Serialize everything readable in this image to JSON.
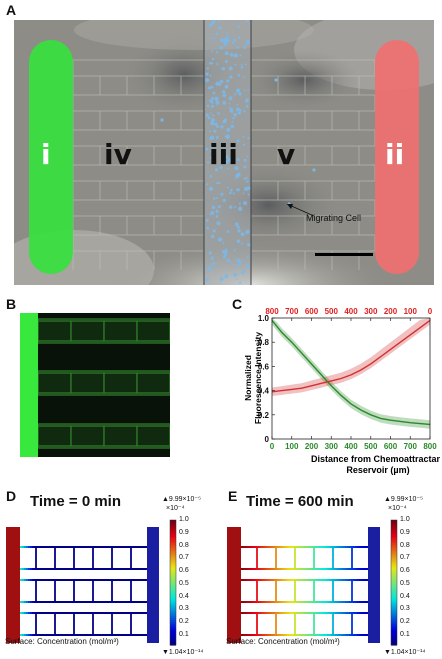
{
  "panel_labels": {
    "a": "A",
    "b": "B",
    "c": "C",
    "d": "D",
    "e": "E"
  },
  "panel_a": {
    "regions": {
      "i": "i",
      "iv": "iv",
      "iii": "iii",
      "v": "v",
      "ii": "ii"
    },
    "callout": "Migrating Cell"
  },
  "panel_c": {
    "chart_data": {
      "type": "line",
      "xlabel": "Distance from Chemoattractant Reservoir (µm)",
      "ylabel": "Normalized Fluorescence Intensity",
      "xlim": [
        0,
        800
      ],
      "ylim": [
        0,
        1.0
      ],
      "x_ticks": [
        "0",
        "100",
        "200",
        "300",
        "400",
        "500",
        "600",
        "700",
        "800"
      ],
      "y_ticks": [
        "0",
        "0.2",
        "0.4",
        "0.6",
        "0.8",
        "1.0"
      ],
      "top_ticks": [
        "800",
        "700",
        "600",
        "500",
        "400",
        "300",
        "200",
        "100",
        "0"
      ],
      "top_axis_color": "#e02020",
      "series": [
        {
          "color": "#2a8a2a",
          "x": [
            0,
            25,
            50,
            100,
            150,
            200,
            250,
            300,
            350,
            400,
            450,
            500,
            550,
            600,
            650,
            700,
            750,
            800
          ],
          "y": [
            0.98,
            0.93,
            0.88,
            0.8,
            0.71,
            0.62,
            0.53,
            0.44,
            0.36,
            0.29,
            0.24,
            0.2,
            0.17,
            0.155,
            0.145,
            0.135,
            0.128,
            0.12
          ]
        },
        {
          "color": "#d23030",
          "x": [
            0,
            50,
            100,
            150,
            200,
            250,
            300,
            350,
            400,
            450,
            500,
            550,
            600,
            650,
            700,
            750,
            800
          ],
          "y": [
            0.39,
            0.4,
            0.41,
            0.42,
            0.44,
            0.46,
            0.48,
            0.5,
            0.53,
            0.57,
            0.62,
            0.68,
            0.74,
            0.8,
            0.86,
            0.92,
            0.98
          ]
        }
      ]
    }
  },
  "panel_d": {
    "title": "Time = 0 min",
    "caption": "Surface: Concentration (mol/m³)",
    "cb_max": "▲9.99×10⁻⁵",
    "cb_exp": "×10⁻⁴",
    "cb_min": "▼1.04×10⁻¹⁴",
    "cb_ticks": [
      "1.0",
      "0.9",
      "0.8",
      "0.7",
      "0.6",
      "0.5",
      "0.4",
      "0.3",
      "0.2",
      "0.1"
    ]
  },
  "panel_e": {
    "title": "Time = 600 min",
    "caption": "Surface: Concentration (mol/m³)",
    "cb_max": "▲9.99×10⁻⁵",
    "cb_exp": "×10⁻⁴",
    "cb_min": "▼1.04×10⁻¹⁴",
    "cb_ticks": [
      "1.0",
      "0.9",
      "0.8",
      "0.7",
      "0.6",
      "0.5",
      "0.4",
      "0.3",
      "0.2",
      "0.1"
    ]
  }
}
